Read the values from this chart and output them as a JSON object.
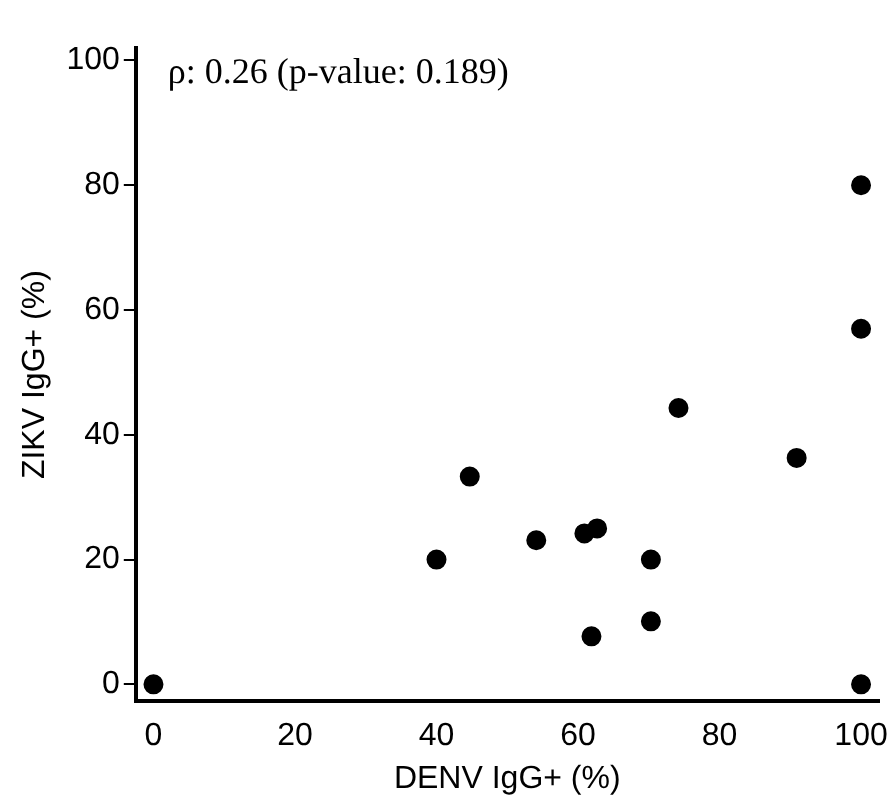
{
  "chart_data": {
    "type": "scatter",
    "xlabel": "DENV IgG+ (%)",
    "ylabel": "ZIKV IgG+ (%)",
    "annotations": [
      "ρ: 0.26 (p-value: 0.189)"
    ],
    "series": [
      {
        "color": "#000000",
        "x": [
          0,
          40,
          44.7,
          54.1,
          60.9,
          62.7,
          61.9,
          70.3,
          70.3,
          74.2,
          90.9,
          100,
          100,
          100
        ],
        "values": [
          0,
          20,
          33.3,
          23.1,
          24.2,
          25,
          7.7,
          20,
          10.1,
          44.3,
          36.3,
          0,
          57,
          80
        ]
      }
    ],
    "xlim": [
      -2.5,
      102.5
    ],
    "ylim": [
      -2.7,
      102
    ],
    "xticks": [
      0,
      20,
      40,
      60,
      80,
      100
    ],
    "yticks": [
      0,
      20,
      40,
      60,
      80,
      100
    ],
    "grid": false,
    "legend": false,
    "marker": "circle"
  }
}
